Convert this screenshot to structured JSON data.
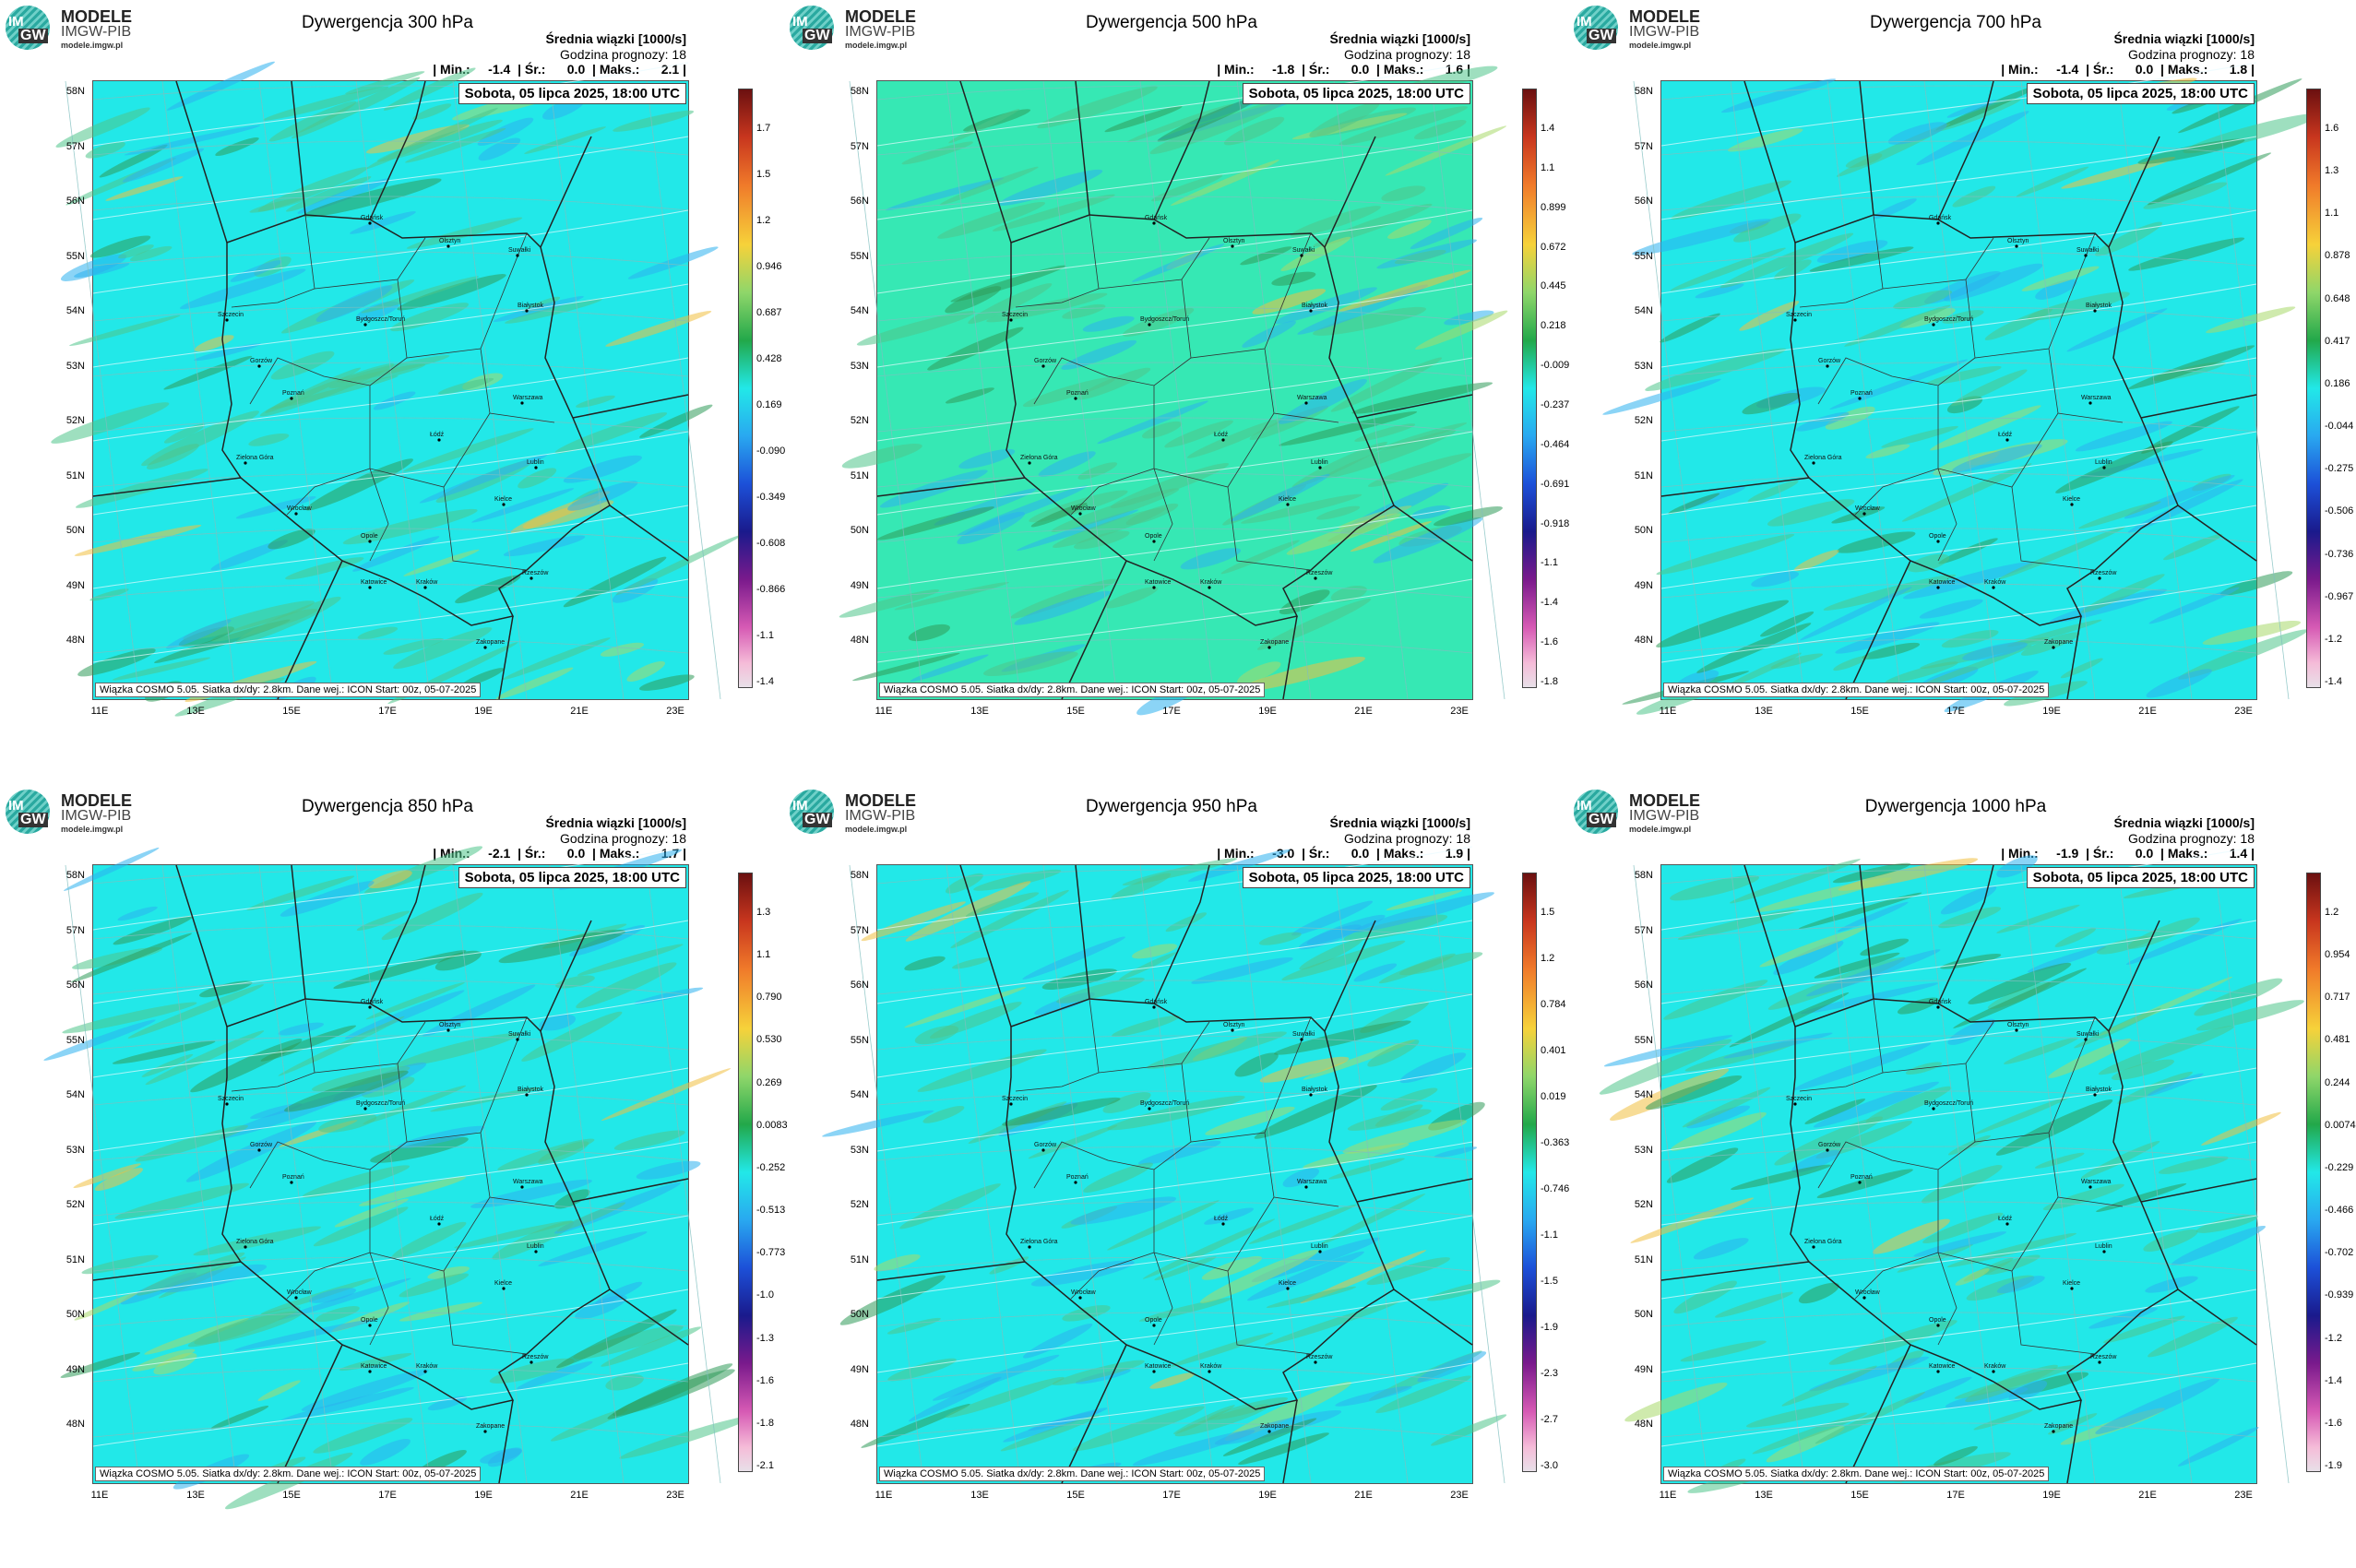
{
  "logo": {
    "line1": "MODELE",
    "line2": "IMGW-PIB",
    "line3": "modele.imgw.pl",
    "badge1": "IM",
    "badge2": "GW"
  },
  "header": {
    "line1": "Średnia wiązki [1000/s]",
    "line2": "Godzina prognozy: 18"
  },
  "date_label": "Sobota, 05 lipca 2025, 18:00 UTC",
  "footer": "Wiązka  COSMO  5.05.  Siatka  dx/dy:  2.8km.  Dane  wej.:  ICON  Start:  00z,  05-07-2025",
  "lat_labels": [
    "58N",
    "57N",
    "56N",
    "55N",
    "54N",
    "53N",
    "52N",
    "51N",
    "50N",
    "49N",
    "48N"
  ],
  "lon_labels": [
    "11E",
    "13E",
    "15E",
    "17E",
    "19E",
    "21E",
    "23E"
  ],
  "cities": [
    "Gdańsk",
    "Olsztyn",
    "Suwałki",
    "Białystok",
    "Szczecin",
    "Bydgoszcz/Toruń",
    "Gorzów",
    "Poznań",
    "Warszawa",
    "Łódź",
    "Zielona Góra",
    "Lublin",
    "Wrocław",
    "Kielce",
    "Opole",
    "Katowice",
    "Kraków",
    "Rzeszów",
    "Zakopane"
  ],
  "colors": {
    "sea_cyan": "#22e8e8",
    "sea_teal": "#36e8b4",
    "border": "#222222"
  },
  "panels": [
    {
      "title": "Dywergencja 300 hPa",
      "stats": "| Min.:     -1.4  | Śr.:      0.0  | Maks.:      2.1 |",
      "colorbar_labels": [
        "1.7",
        "1.5",
        "1.2",
        "0.946",
        "0.687",
        "0.428",
        "0.169",
        "-0.090",
        "-0.349",
        "-0.608",
        "-0.866",
        "-1.1",
        "-1.4"
      ],
      "bg": "#22e8e8"
    },
    {
      "title": "Dywergencja 500 hPa",
      "stats": "| Min.:     -1.8  | Śr.:      0.0  | Maks.:      1.6 |",
      "colorbar_labels": [
        "1.4",
        "1.1",
        "0.899",
        "0.672",
        "0.445",
        "0.218",
        "-0.009",
        "-0.237",
        "-0.464",
        "-0.691",
        "-0.918",
        "-1.1",
        "-1.4",
        "-1.6",
        "-1.8"
      ],
      "bg": "#36e8b4"
    },
    {
      "title": "Dywergencja 700 hPa",
      "stats": "| Min.:     -1.4  | Śr.:      0.0  | Maks.:      1.8 |",
      "colorbar_labels": [
        "1.6",
        "1.3",
        "1.1",
        "0.878",
        "0.648",
        "0.417",
        "0.186",
        "-0.044",
        "-0.275",
        "-0.506",
        "-0.736",
        "-0.967",
        "-1.2",
        "-1.4"
      ],
      "bg": "#22e8e8"
    },
    {
      "title": "Dywergencja 850 hPa",
      "stats": "| Min.:     -2.1  | Śr.:      0.0  | Maks.:      1.7 |",
      "colorbar_labels": [
        "1.3",
        "1.1",
        "0.790",
        "0.530",
        "0.269",
        "0.0083",
        "-0.252",
        "-0.513",
        "-0.773",
        "-1.0",
        "-1.3",
        "-1.6",
        "-1.8",
        "-2.1"
      ],
      "bg": "#22e8e8"
    },
    {
      "title": "Dywergencja 950 hPa",
      "stats": "| Min.:     -3.0  | Śr.:      0.0  | Maks.:      1.9 |",
      "colorbar_labels": [
        "1.5",
        "1.2",
        "0.784",
        "0.401",
        "0.019",
        "-0.363",
        "-0.746",
        "-1.1",
        "-1.5",
        "-1.9",
        "-2.3",
        "-2.7",
        "-3.0"
      ],
      "bg": "#22e8e8"
    },
    {
      "title": "Dywergencja 1000 hPa",
      "stats": "| Min.:     -1.9  | Śr.:      0.0  | Maks.:      1.4 |",
      "colorbar_labels": [
        "1.2",
        "0.954",
        "0.717",
        "0.481",
        "0.244",
        "0.0074",
        "-0.229",
        "-0.466",
        "-0.702",
        "-0.939",
        "-1.2",
        "-1.4",
        "-1.6",
        "-1.9"
      ],
      "bg": "#22e8e8"
    }
  ]
}
